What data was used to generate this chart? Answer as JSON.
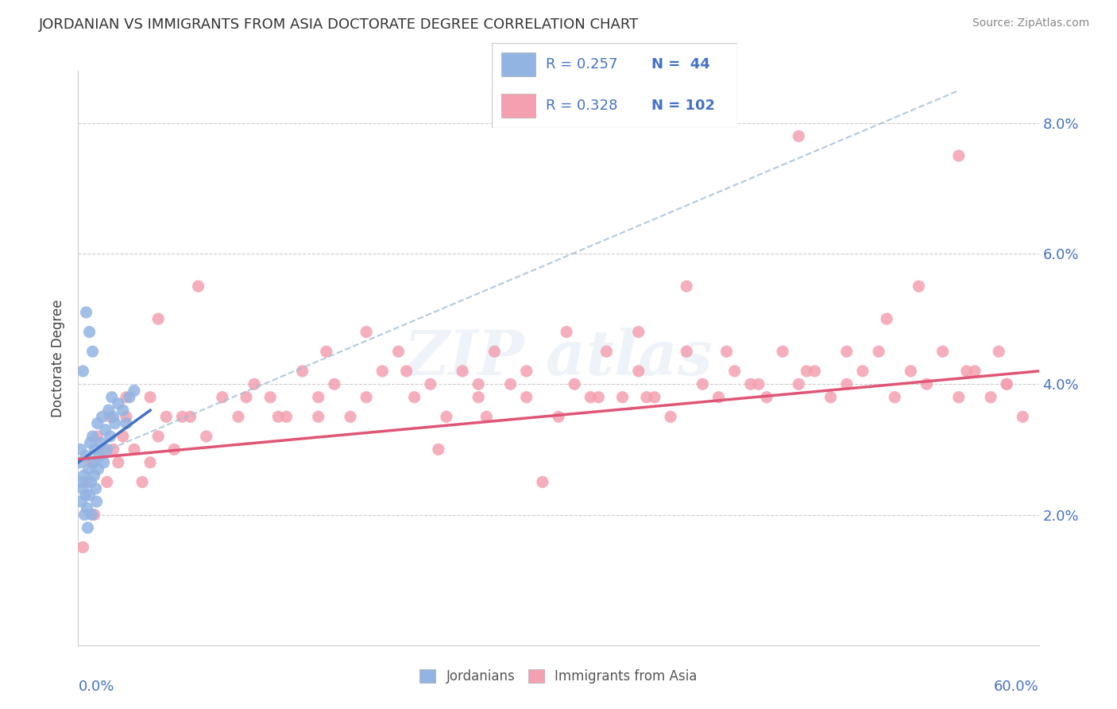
{
  "title": "JORDANIAN VS IMMIGRANTS FROM ASIA DOCTORATE DEGREE CORRELATION CHART",
  "source": "Source: ZipAtlas.com",
  "ylabel": "Doctorate Degree",
  "xlim": [
    0.0,
    60.0
  ],
  "ylim": [
    0.0,
    8.8
  ],
  "yticks": [
    2.0,
    4.0,
    6.0,
    8.0
  ],
  "ytick_labels": [
    "2.0%",
    "4.0%",
    "6.0%",
    "8.0%"
  ],
  "legend_r1": "R = 0.257",
  "legend_n1": "N =  44",
  "legend_r2": "R = 0.328",
  "legend_n2": "N = 102",
  "blue_color": "#92B4E3",
  "pink_color": "#F4A0B0",
  "trend_blue_color": "#4472C4",
  "trend_pink_color": "#E05575",
  "trend_blue_ext_color": "#A0B8D8",
  "label_color": "#4472C4",
  "title_color": "#333333",
  "jordanians_x": [
    0.1,
    0.15,
    0.2,
    0.25,
    0.3,
    0.35,
    0.4,
    0.45,
    0.5,
    0.55,
    0.6,
    0.65,
    0.7,
    0.75,
    0.8,
    0.85,
    0.9,
    0.95,
    1.0,
    1.05,
    1.1,
    1.15,
    1.2,
    1.25,
    1.3,
    1.4,
    1.5,
    1.6,
    1.7,
    1.8,
    1.9,
    2.0,
    2.1,
    2.2,
    2.3,
    2.5,
    2.8,
    3.0,
    3.2,
    3.5,
    0.3,
    0.5,
    0.7,
    0.9
  ],
  "jordanians_y": [
    2.8,
    3.0,
    2.2,
    2.5,
    2.4,
    2.6,
    2.0,
    2.3,
    2.9,
    2.1,
    1.8,
    2.7,
    2.3,
    3.1,
    2.5,
    2.0,
    3.2,
    2.8,
    2.6,
    3.0,
    2.4,
    2.2,
    3.4,
    2.7,
    2.9,
    3.1,
    3.5,
    2.8,
    3.3,
    3.0,
    3.6,
    3.2,
    3.8,
    3.5,
    3.4,
    3.7,
    3.6,
    3.4,
    3.8,
    3.9,
    4.2,
    5.1,
    4.8,
    4.5
  ],
  "asia_x": [
    0.3,
    0.5,
    0.8,
    1.0,
    1.2,
    1.5,
    1.8,
    2.0,
    2.2,
    2.5,
    2.8,
    3.0,
    3.5,
    4.0,
    4.5,
    5.0,
    5.5,
    6.0,
    7.0,
    8.0,
    9.0,
    10.0,
    11.0,
    12.0,
    13.0,
    14.0,
    15.0,
    16.0,
    17.0,
    18.0,
    19.0,
    20.0,
    21.0,
    22.0,
    23.0,
    24.0,
    25.0,
    26.0,
    27.0,
    28.0,
    29.0,
    30.0,
    31.0,
    32.0,
    33.0,
    34.0,
    35.0,
    36.0,
    37.0,
    38.0,
    39.0,
    40.0,
    41.0,
    42.0,
    43.0,
    44.0,
    45.0,
    46.0,
    47.0,
    48.0,
    49.0,
    50.0,
    51.0,
    52.0,
    53.0,
    54.0,
    55.0,
    56.0,
    57.0,
    58.0,
    59.0,
    3.0,
    6.5,
    10.5,
    15.5,
    20.5,
    25.5,
    30.5,
    35.5,
    40.5,
    45.5,
    50.5,
    55.5,
    4.5,
    12.5,
    22.5,
    32.5,
    42.5,
    52.5,
    57.5,
    7.5,
    18.0,
    28.0,
    38.0,
    48.0,
    58.0,
    5.0,
    15.0,
    25.0,
    35.0,
    45.0,
    55.0
  ],
  "asia_y": [
    1.5,
    2.5,
    2.8,
    2.0,
    3.2,
    3.0,
    2.5,
    3.5,
    3.0,
    2.8,
    3.2,
    3.5,
    3.0,
    2.5,
    3.8,
    3.2,
    3.5,
    3.0,
    3.5,
    3.2,
    3.8,
    3.5,
    4.0,
    3.8,
    3.5,
    4.2,
    3.8,
    4.0,
    3.5,
    3.8,
    4.2,
    4.5,
    3.8,
    4.0,
    3.5,
    4.2,
    3.8,
    4.5,
    4.0,
    3.8,
    2.5,
    3.5,
    4.0,
    3.8,
    4.5,
    3.8,
    4.2,
    3.8,
    3.5,
    4.5,
    4.0,
    3.8,
    4.2,
    4.0,
    3.8,
    4.5,
    4.0,
    4.2,
    3.8,
    4.0,
    4.2,
    4.5,
    3.8,
    4.2,
    4.0,
    4.5,
    3.8,
    4.2,
    3.8,
    4.0,
    3.5,
    3.8,
    3.5,
    3.8,
    4.5,
    4.2,
    3.5,
    4.8,
    3.8,
    4.5,
    4.2,
    5.0,
    4.2,
    2.8,
    3.5,
    3.0,
    3.8,
    4.0,
    5.5,
    4.5,
    5.5,
    4.8,
    4.2,
    5.5,
    4.5,
    4.0,
    5.0,
    3.5,
    4.0,
    4.8,
    7.8,
    7.5
  ],
  "blue_trend_x0": 0.0,
  "blue_trend_y0": 2.8,
  "blue_trend_x1": 4.5,
  "blue_trend_y1": 3.6,
  "blue_trend_ext_x1": 55.0,
  "blue_trend_ext_y1": 8.5,
  "pink_trend_x0": 0.0,
  "pink_trend_y0": 2.85,
  "pink_trend_x1": 60.0,
  "pink_trend_y1": 4.2
}
